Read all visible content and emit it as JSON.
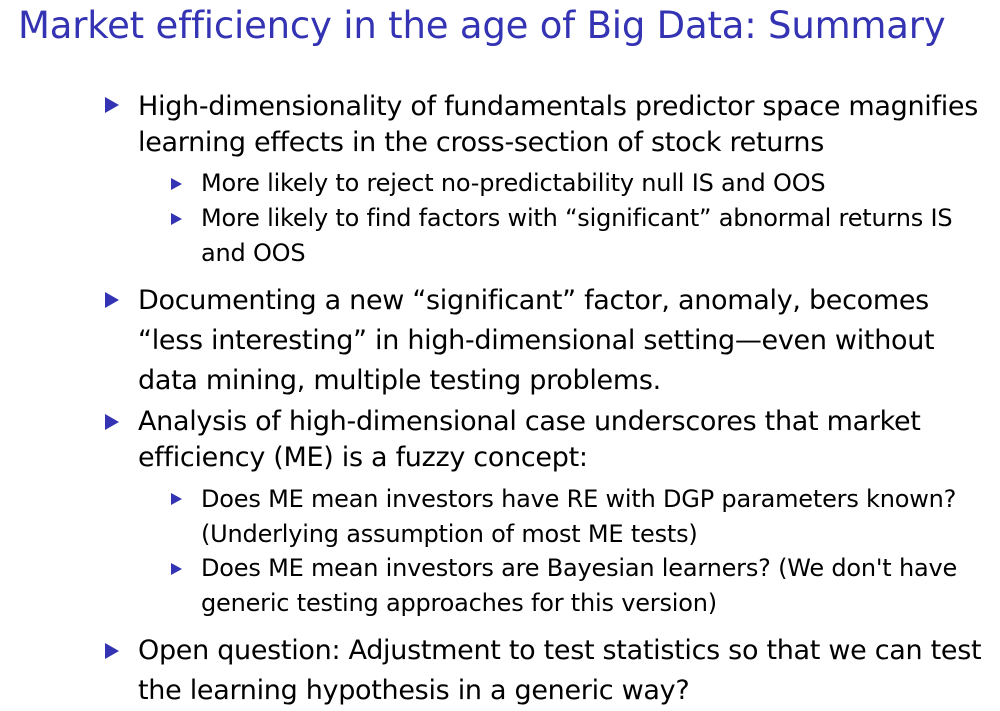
{
  "slide": {
    "title": "Market efficiency in the age of Big Data: Summary",
    "accent_color": "#3333b3",
    "bullet_icon": "triangle-right",
    "items": [
      {
        "text": "High-dimensionality of fundamentals predictor space magnifies learning effects in the cross-section of stock returns",
        "subitems": [
          "More likely to reject no-predictability null IS and OOS",
          "More likely to find factors with “significant” abnormal returns IS and OOS"
        ]
      },
      {
        "text": "Documenting a new “significant” factor, anomaly, becomes “less interesting” in high-dimensional setting—even without data mining, multiple testing problems.",
        "subitems": []
      },
      {
        "text": "Analysis of high-dimensional case underscores that market efficiency (ME) is a fuzzy concept:",
        "subitems": [
          "Does ME mean investors have RE with DGP parameters known? (Underlying assumption of most ME tests)",
          "Does ME mean investors are Bayesian learners? (We don't have generic testing approaches for this version)"
        ]
      },
      {
        "text": "Open question: Adjustment to test statistics so that we can test the learning hypothesis in a generic way?",
        "subitems": []
      }
    ]
  }
}
